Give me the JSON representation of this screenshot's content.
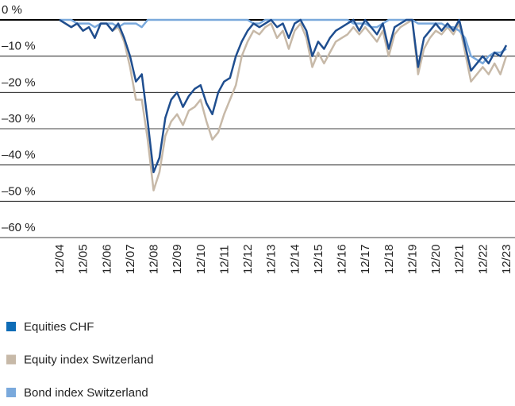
{
  "chart_data": {
    "type": "line",
    "categories": [
      "12/04",
      null,
      null,
      null,
      "12/05",
      null,
      null,
      null,
      "12/06",
      null,
      null,
      null,
      "12/07",
      null,
      null,
      null,
      "12/08",
      null,
      null,
      null,
      "12/09",
      null,
      null,
      null,
      "12/10",
      null,
      null,
      null,
      "12/11",
      null,
      null,
      null,
      "12/12",
      null,
      null,
      null,
      "12/13",
      null,
      null,
      null,
      "12/14",
      null,
      null,
      null,
      "12/15",
      null,
      null,
      null,
      "12/16",
      null,
      null,
      null,
      "12/17",
      null,
      null,
      null,
      "12/18",
      null,
      null,
      null,
      "12/19",
      null,
      null,
      null,
      "12/20",
      null,
      null,
      null,
      "12/21",
      null,
      null,
      null,
      "12/22",
      null,
      null,
      null,
      "12/23"
    ],
    "series": [
      {
        "name": "Equity index Switzerland",
        "color": "#c7b9a8",
        "values": [
          0,
          -1,
          -2,
          -1,
          -3,
          -2,
          -5,
          -1,
          -1,
          -3,
          -2,
          -6,
          -13,
          -22,
          -22,
          -33,
          -47,
          -42,
          -32,
          -28,
          -26,
          -29,
          -25,
          -24,
          -22,
          -28,
          -33,
          -31,
          -26,
          -22,
          -18,
          -10,
          -6,
          -3,
          -4,
          -2,
          -1,
          -5,
          -3,
          -8,
          -3,
          -1,
          -5,
          -13,
          -9,
          -12,
          -9,
          -6,
          -5,
          -4,
          -2,
          -4,
          -2,
          -4,
          -6,
          -3,
          -10,
          -4,
          -2,
          -1,
          0,
          -15,
          -8,
          -5,
          -3,
          -4,
          -2,
          -4,
          -1,
          -9,
          -17,
          -15,
          -13,
          -15,
          -12,
          -15,
          -10
        ]
      },
      {
        "name": "Bond index Switzerland",
        "color": "#7aa9dc",
        "values": [
          0,
          0,
          0,
          -1,
          -1,
          -1,
          -2,
          -1,
          -1,
          -1,
          -2,
          -1,
          -1,
          -1,
          -2,
          0,
          0,
          0,
          0,
          0,
          0,
          0,
          0,
          0,
          0,
          0,
          0,
          0,
          0,
          0,
          0,
          0,
          0,
          -1,
          -1,
          0,
          0,
          0,
          0,
          0,
          0,
          0,
          0,
          0,
          0,
          0,
          0,
          0,
          0,
          0,
          -1,
          -1,
          -1,
          -2,
          -2,
          -1,
          0,
          0,
          0,
          0,
          0,
          -1,
          -1,
          -1,
          -1,
          -1,
          -2,
          -2,
          -3,
          -5,
          -10,
          -11,
          -12,
          -10,
          -9,
          -9,
          -8
        ]
      },
      {
        "name": "Equities CHF",
        "color": "#1f4e8f",
        "values": [
          0,
          -1,
          -2,
          -1,
          -3,
          -2,
          -5,
          -1,
          -1,
          -3,
          -1,
          -5,
          -10,
          -17,
          -15,
          -28,
          -42,
          -38,
          -27,
          -22,
          -20,
          -24,
          -21,
          -19,
          -18,
          -23,
          -26,
          -20,
          -17,
          -16,
          -10,
          -6,
          -3,
          -1,
          -2,
          -1,
          0,
          -2,
          -1,
          -5,
          -1,
          0,
          -3,
          -10,
          -6,
          -8,
          -5,
          -3,
          -2,
          -1,
          0,
          -3,
          0,
          -2,
          -4,
          -1,
          -8,
          -2,
          -1,
          0,
          0,
          -13,
          -5,
          -3,
          -1,
          -3,
          -1,
          -3,
          0,
          -7,
          -14,
          -12,
          -10,
          -12,
          -9,
          -10,
          -7
        ]
      }
    ],
    "legend_order": [
      2,
      0,
      1
    ],
    "legend_colors": [
      "#0e6cb6",
      "#c7b9a8",
      "#7aa9dc"
    ],
    "ylim": [
      -60,
      0
    ],
    "yticks": [
      {
        "value": 0,
        "label": "0 %"
      },
      {
        "value": -10,
        "label": "–10 %"
      },
      {
        "value": -20,
        "label": "–20 %"
      },
      {
        "value": -30,
        "label": "–30 %"
      },
      {
        "value": -40,
        "label": "–40 %"
      },
      {
        "value": -50,
        "label": "–50 %"
      },
      {
        "value": -60,
        "label": "–60 %"
      }
    ],
    "grid": true
  }
}
